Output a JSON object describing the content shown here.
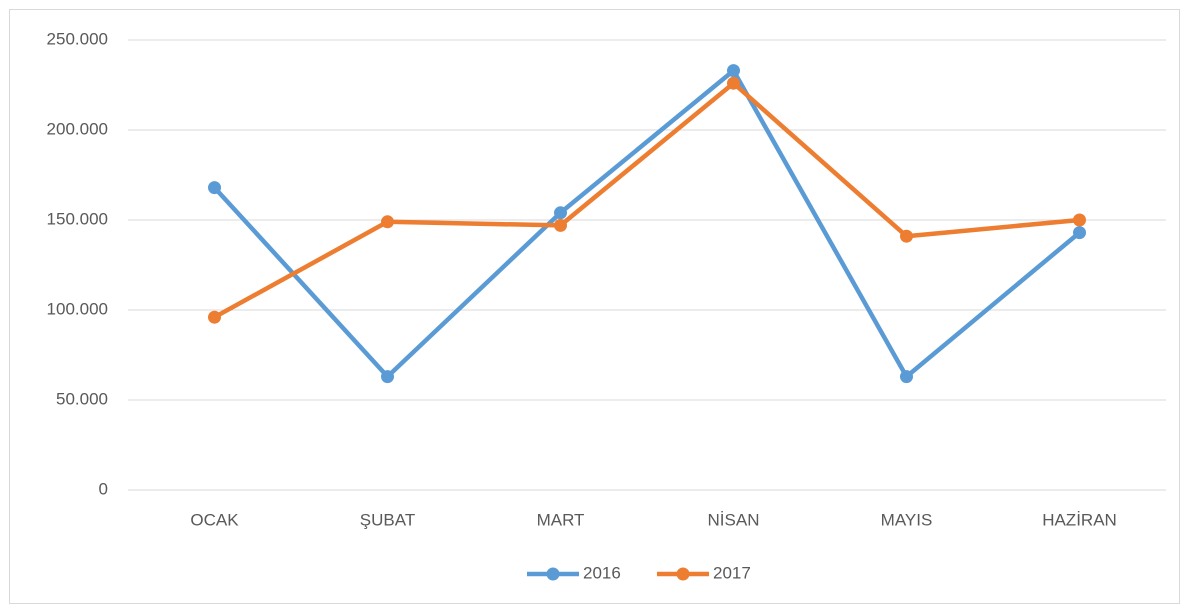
{
  "chart_data": {
    "type": "line",
    "categories": [
      "OCAK",
      "ŞUBAT",
      "MART",
      "NİSAN",
      "MAYIS",
      "HAZİRAN"
    ],
    "series": [
      {
        "name": "2016",
        "color": "#5b9bd5",
        "values": [
          168000,
          63000,
          154000,
          233000,
          63000,
          143000
        ]
      },
      {
        "name": "2017",
        "color": "#ed7d31",
        "values": [
          96000,
          149000,
          147000,
          226000,
          141000,
          150000
        ]
      }
    ],
    "ylim": [
      0,
      250000
    ],
    "yticks": [
      0,
      {
        "value": 50000,
        "label": "50.000"
      },
      {
        "value": 100000,
        "label": "100.000"
      },
      {
        "value": 150000,
        "label": "150.000"
      },
      {
        "value": 200000,
        "label": "200.000"
      },
      {
        "value": 250000,
        "label": "250.000"
      }
    ],
    "grid": true,
    "legend": "bottom"
  }
}
